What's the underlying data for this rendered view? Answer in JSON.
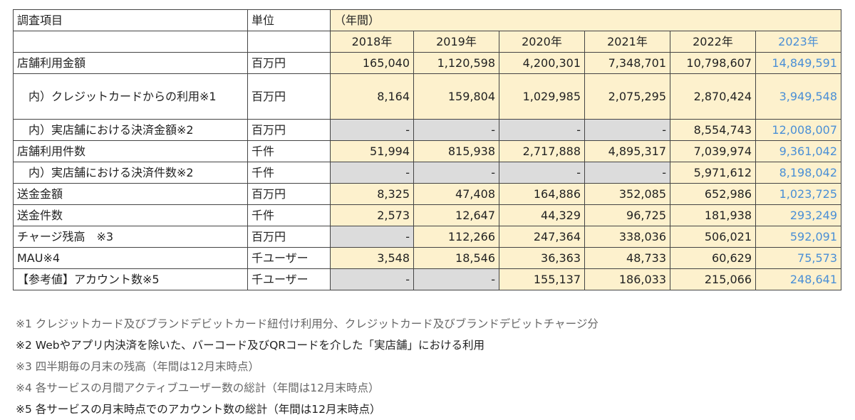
{
  "header": {
    "item": "調査項目",
    "unit": "単位",
    "period": "（年間）",
    "years": [
      "2018年",
      "2019年",
      "2020年",
      "2021年",
      "2022年",
      "2023年"
    ]
  },
  "rows": [
    {
      "label": "店舗利用金額",
      "unit": "百万円",
      "values": [
        "165,040",
        "1,120,598",
        "4,200,301",
        "7,348,701",
        "10,798,607",
        "14,849,591"
      ]
    },
    {
      "label": "　内）クレジットカードからの利用※1",
      "unit": "百万円",
      "values": [
        "8,164",
        "159,804",
        "1,029,985",
        "2,075,295",
        "2,870,424",
        "3,949,548"
      ]
    },
    {
      "label": "　内）実店舗における決済金額※2",
      "unit": "百万円",
      "values": [
        "-",
        "-",
        "-",
        "-",
        "8,554,743",
        "12,008,007"
      ]
    },
    {
      "label": "店舗利用件数",
      "unit": "千件",
      "values": [
        "51,994",
        "815,938",
        "2,717,888",
        "4,895,317",
        "7,039,974",
        "9,361,042"
      ]
    },
    {
      "label": "　内）実店舗における決済件数※2",
      "unit": "千件",
      "values": [
        "-",
        "-",
        "-",
        "-",
        "5,971,612",
        "8,198,042"
      ]
    },
    {
      "label": "送金金額",
      "unit": "百万円",
      "values": [
        "8,325",
        "47,408",
        "164,886",
        "352,085",
        "652,986",
        "1,023,725"
      ]
    },
    {
      "label": "送金件数",
      "unit": "千件",
      "values": [
        "2,573",
        "12,647",
        "44,329",
        "96,725",
        "181,938",
        "293,249"
      ]
    },
    {
      "label": "チャージ残高　※3",
      "unit": "百万円",
      "values": [
        "-",
        "112,266",
        "247,364",
        "338,036",
        "506,021",
        "592,091"
      ]
    },
    {
      "label": "MAU※4",
      "unit": "千ユーザー",
      "values": [
        "3,548",
        "18,546",
        "36,363",
        "48,733",
        "60,629",
        "75,573"
      ]
    },
    {
      "label": "【参考値】アカウント数※5",
      "unit": "千ユーザー",
      "values": [
        "-",
        "-",
        "155,137",
        "186,033",
        "215,066",
        "248,641"
      ]
    }
  ],
  "notes": [
    "※1 クレジットカード及びブランドデビットカード紐付け利用分、クレジットカード及びブランドデビットチャージ分",
    "※2 Webやアプリ内決済を除いた、バーコード及びQRコードを介した「実店舗」における利用",
    "※3 四半期毎の月末の残高（年間は12月末時点）",
    "※4 各サービスの月間アクティブユーザー数の総計（年間は12月末時点）",
    "※5 各サービスの月末時点でのアカウント数の総計（年間は12月末時点）"
  ]
}
